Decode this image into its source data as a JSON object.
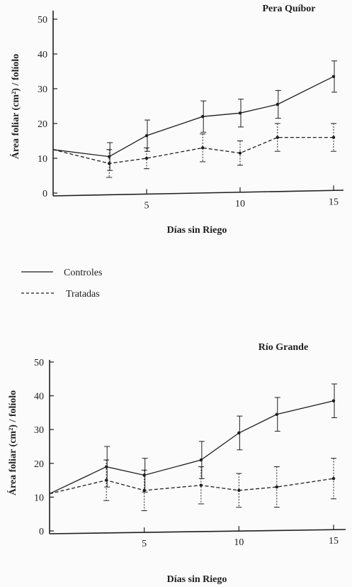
{
  "legend": {
    "controls": "Controles",
    "treated": "Tratadas"
  },
  "chart_data": [
    {
      "type": "line",
      "title": "Pera Quíbor",
      "xlabel": "Días sin Riego",
      "ylabel": "Área foliar (cm²) / folíolo",
      "xlim": [
        0,
        15.5
      ],
      "ylim": [
        0,
        50
      ],
      "xticks": [
        5,
        10,
        15
      ],
      "yticks": [
        0,
        10,
        20,
        30,
        40,
        50
      ],
      "error_bars": true,
      "series": [
        {
          "name": "Controles",
          "style": "solid",
          "x": [
            0,
            3,
            5,
            8,
            10,
            12,
            15
          ],
          "y": [
            12.5,
            10.5,
            16.5,
            22,
            23,
            25.5,
            33.5
          ],
          "err": [
            0,
            4,
            4.5,
            4.5,
            4,
            4,
            4.5
          ]
        },
        {
          "name": "Tratadas",
          "style": "dashed",
          "x": [
            0,
            3,
            5,
            8,
            10,
            12,
            15
          ],
          "y": [
            12.5,
            8.5,
            10,
            13,
            11.5,
            16,
            16
          ],
          "err": [
            0,
            4,
            3,
            4,
            3.5,
            4,
            4
          ]
        }
      ]
    },
    {
      "type": "line",
      "title": "Río Grande",
      "xlabel": "Días sin Riego",
      "ylabel": "Área foliar (cm²) / folíolo",
      "xlim": [
        0,
        15.5
      ],
      "ylim": [
        0,
        50
      ],
      "xticks": [
        5,
        10,
        15
      ],
      "yticks": [
        0,
        10,
        20,
        30,
        40,
        50
      ],
      "error_bars": true,
      "series": [
        {
          "name": "Controles",
          "style": "solid",
          "x": [
            0,
            3,
            5,
            8,
            10,
            12,
            15
          ],
          "y": [
            11,
            19,
            16.5,
            21,
            29,
            34.5,
            38.5
          ],
          "err": [
            0,
            6,
            5,
            5.5,
            5,
            5,
            5
          ]
        },
        {
          "name": "Tratadas",
          "style": "dashed",
          "x": [
            0,
            3,
            5,
            8,
            10,
            12,
            15
          ],
          "y": [
            11,
            15,
            12,
            13.5,
            12,
            13,
            15.5
          ],
          "err": [
            0,
            6,
            6,
            5.5,
            5,
            6,
            6
          ]
        }
      ]
    }
  ]
}
